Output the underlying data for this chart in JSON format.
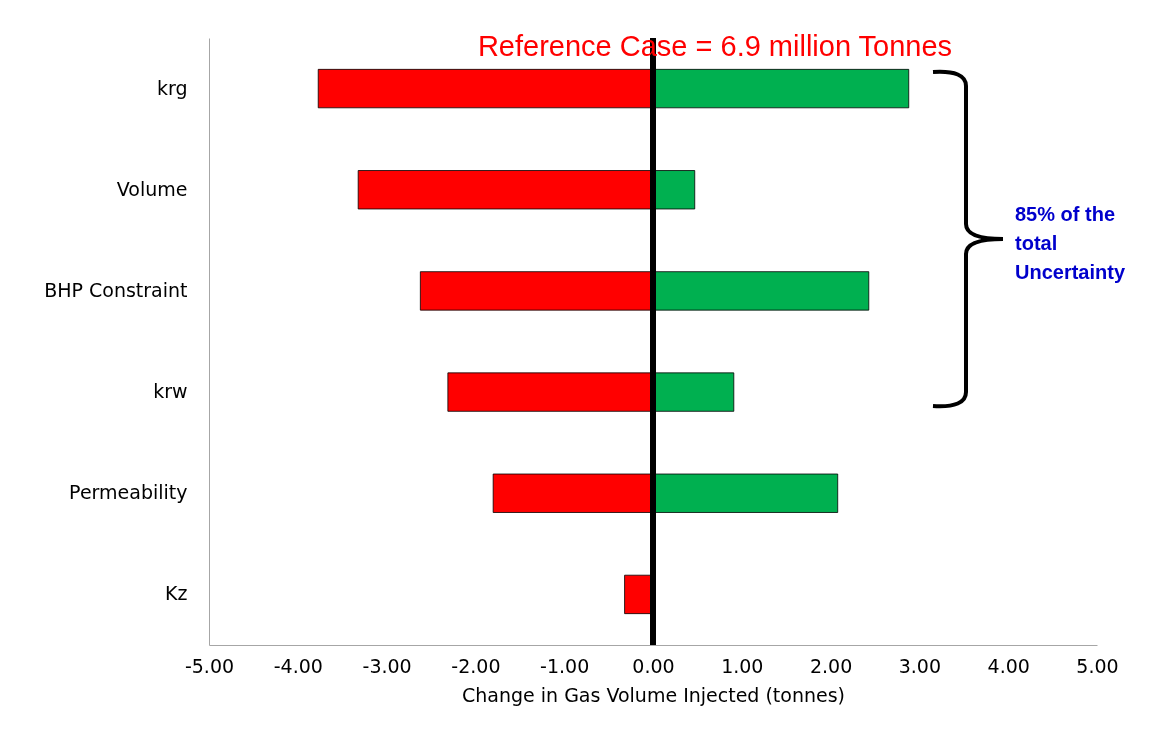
{
  "chart_data": {
    "type": "bar",
    "orientation": "horizontal",
    "stacked": true,
    "categories": [
      "krg",
      "Volume",
      "BHP Constraint",
      "krw",
      "Permeability",
      "Kz"
    ],
    "series": [
      {
        "color": "#ff0000",
        "values": [
          -3.77,
          -3.32,
          -2.62,
          -2.31,
          -1.8,
          -0.32
        ]
      },
      {
        "color": "#00b050",
        "values": [
          2.88,
          0.47,
          2.43,
          0.91,
          2.08,
          null
        ]
      }
    ],
    "xlim": [
      -5,
      5
    ],
    "xticks": [
      {
        "value": -5,
        "label": "-5.00"
      },
      {
        "value": -4,
        "label": "-4.00"
      },
      {
        "value": -3,
        "label": "-3.00"
      },
      {
        "value": -2,
        "label": "-2.00"
      },
      {
        "value": -1,
        "label": "-1.00"
      },
      {
        "value": 0,
        "label": "0.00"
      },
      {
        "value": 1,
        "label": "1.00"
      },
      {
        "value": 2,
        "label": "2.00"
      },
      {
        "value": 3,
        "label": "3.00"
      },
      {
        "value": 4,
        "label": "4.00"
      },
      {
        "value": 5,
        "label": "5.00"
      }
    ],
    "xlabel": "Change in Gas Volume Injected (tonnes)",
    "ref_lines": [
      {
        "axis": "x",
        "value": 0,
        "color": "#000000"
      }
    ],
    "annotations": [
      "Reference Case = 6.9 million Tonnes",
      "85% of the total Uncertainty"
    ],
    "grid": false,
    "legend": false
  }
}
